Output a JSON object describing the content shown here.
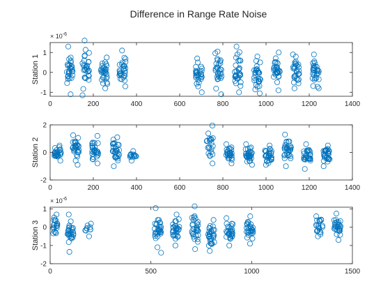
{
  "figure": {
    "title": "Difference in Range Rate Noise"
  },
  "chart_data": [
    {
      "type": "scatter",
      "ylabel": "Station 1",
      "xlim": [
        0,
        1400
      ],
      "ylim": [
        -1.2,
        1.5
      ],
      "xticks": [
        "0",
        "200",
        "400",
        "600",
        "800",
        "1000",
        "1200",
        "1400"
      ],
      "yticks": [
        "-1",
        "0",
        "1"
      ],
      "exponent_base": "× 10",
      "exponent_power": "-6",
      "marker": "open-circle",
      "color": "#0072BD",
      "grid": false,
      "passes": [
        {
          "x": 90,
          "ymin": -1.1,
          "ymax": 1.3,
          "n": 30
        },
        {
          "x": 165,
          "ymin": -1.15,
          "ymax": 1.6,
          "n": 30
        },
        {
          "x": 250,
          "ymin": -0.8,
          "ymax": 0.75,
          "n": 30
        },
        {
          "x": 335,
          "ymin": -0.7,
          "ymax": 1.1,
          "n": 30
        },
        {
          "x": 690,
          "ymin": -1.0,
          "ymax": 0.7,
          "n": 28
        },
        {
          "x": 780,
          "ymin": -1.1,
          "ymax": 1.05,
          "n": 30
        },
        {
          "x": 870,
          "ymin": -1.0,
          "ymax": 1.3,
          "n": 30
        },
        {
          "x": 960,
          "ymin": -1.05,
          "ymax": 0.8,
          "n": 30
        },
        {
          "x": 1050,
          "ymin": -0.9,
          "ymax": 1.0,
          "n": 30
        },
        {
          "x": 1140,
          "ymin": -0.8,
          "ymax": 0.9,
          "n": 30
        },
        {
          "x": 1230,
          "ymin": -0.8,
          "ymax": 0.9,
          "n": 30
        }
      ]
    },
    {
      "type": "scatter",
      "ylabel": "Station 2",
      "xlim": [
        0,
        1400
      ],
      "ylim": [
        -2,
        2
      ],
      "xticks": [
        "0",
        "200",
        "400",
        "600",
        "800",
        "1000",
        "1200",
        "1400"
      ],
      "yticks": [
        "-2",
        "0",
        "2"
      ],
      "marker": "open-circle",
      "color": "#0072BD",
      "grid": false,
      "passes": [
        {
          "x": 35,
          "ymin": -0.6,
          "ymax": 0.5,
          "n": 28
        },
        {
          "x": 120,
          "ymin": -0.9,
          "ymax": 1.25,
          "n": 30
        },
        {
          "x": 210,
          "ymin": -0.8,
          "ymax": 1.2,
          "n": 30
        },
        {
          "x": 305,
          "ymin": -1.0,
          "ymax": 1.1,
          "n": 30
        },
        {
          "x": 385,
          "ymin": -0.6,
          "ymax": 0.1,
          "n": 14
        },
        {
          "x": 740,
          "ymin": -0.8,
          "ymax": 1.95,
          "n": 22
        },
        {
          "x": 830,
          "ymin": -0.8,
          "ymax": 0.6,
          "n": 30
        },
        {
          "x": 920,
          "ymin": -0.9,
          "ymax": 0.6,
          "n": 30
        },
        {
          "x": 1010,
          "ymin": -0.9,
          "ymax": 0.5,
          "n": 30
        },
        {
          "x": 1100,
          "ymin": -1.0,
          "ymax": 1.3,
          "n": 30
        },
        {
          "x": 1190,
          "ymin": -1.2,
          "ymax": 0.6,
          "n": 30
        },
        {
          "x": 1280,
          "ymin": -1.0,
          "ymax": 0.5,
          "n": 30
        }
      ]
    },
    {
      "type": "scatter",
      "ylabel": "Station 3",
      "xlim": [
        0,
        1500
      ],
      "ylim": [
        -2,
        1.1
      ],
      "xticks": [
        "0",
        "500",
        "1000",
        "1500"
      ],
      "yticks": [
        "-2",
        "-1",
        "0",
        "1"
      ],
      "exponent_base": "× 10",
      "exponent_power": "-6",
      "marker": "open-circle",
      "color": "#0072BD",
      "grid": false,
      "passes": [
        {
          "x": 20,
          "ymin": -0.7,
          "ymax": 0.7,
          "n": 24
        },
        {
          "x": 100,
          "ymin": -1.35,
          "ymax": 0.7,
          "n": 28
        },
        {
          "x": 190,
          "ymin": -0.5,
          "ymax": 0.2,
          "n": 10
        },
        {
          "x": 535,
          "ymin": -1.4,
          "ymax": 1.05,
          "n": 30
        },
        {
          "x": 625,
          "ymin": -1.0,
          "ymax": 0.7,
          "n": 30
        },
        {
          "x": 720,
          "ymin": -1.2,
          "ymax": 1.15,
          "n": 30
        },
        {
          "x": 800,
          "ymin": -1.3,
          "ymax": 0.4,
          "n": 30
        },
        {
          "x": 890,
          "ymin": -1.0,
          "ymax": 0.5,
          "n": 30
        },
        {
          "x": 990,
          "ymin": -0.9,
          "ymax": 0.6,
          "n": 30
        },
        {
          "x": 1335,
          "ymin": -0.5,
          "ymax": 0.6,
          "n": 22
        },
        {
          "x": 1425,
          "ymin": -0.7,
          "ymax": 0.75,
          "n": 28
        }
      ]
    }
  ]
}
